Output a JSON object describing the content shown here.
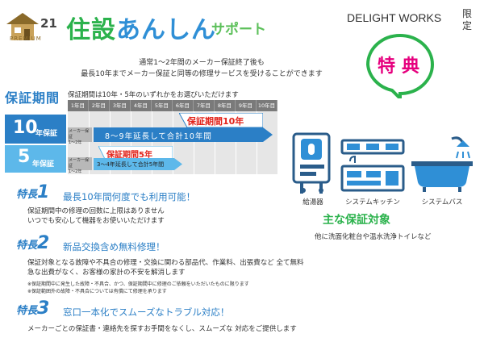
{
  "header": {
    "logo_number": "21",
    "logo_premium": "PREMIUM",
    "title_part1": "住設",
    "title_part2": "あんしん",
    "title_sub": "サポート"
  },
  "promo": {
    "company": "DELIGHT WORKS",
    "limited": "限定",
    "bonus": "特典"
  },
  "intro": {
    "line1": "通常1～2年間のメーカー保証終了後も",
    "line2": "最長10年までメーカー保証と同等の修理サービスを受けることができます"
  },
  "guarantee": {
    "section_label": "保証期間",
    "note": "保証期間は10年・5年のいずれかをお選びいただけます",
    "years": [
      "1年目",
      "2年目",
      "3年目",
      "4年目",
      "5年目",
      "6年目",
      "7年目",
      "8年目",
      "9年目",
      "10年目"
    ],
    "plan10_label": "10",
    "plan10_suffix": "年保証",
    "plan5_label": "5",
    "plan5_suffix": "年保証",
    "manufacturer_text": "メーカー保証",
    "manufacturer_years": "1～2年",
    "plan10_banner": "保証期間10年",
    "plan10_extension": "8～9年延長して合計10年間",
    "plan5_banner": "保証期間5年",
    "plan5_extension": "3～4年延長して合計5年間"
  },
  "features": [
    {
      "label": "特長",
      "num": "1",
      "title": "最長10年間何度でも利用可能！",
      "body": [
        "保証期間中の修理の回数に上限はありません",
        "いつでも安心して機器をお使いいただけます"
      ],
      "notes": []
    },
    {
      "label": "特長",
      "num": "2",
      "title": "新品交換含め無料修理！",
      "body": [
        "保証対象となる故障や不具合の修理・交換に関わる部品代、作業料、出張費など 全て無料",
        "急な出費がなく、お客様の家計の不安を解消します"
      ],
      "notes": [
        "※保証期間中に発生した故障・不具合、かつ、保証期間中に修理のご依頼をいただいたものに限ります",
        "※保証範囲外の故障・不具合については有償にて修理を承ります"
      ]
    },
    {
      "label": "特長",
      "num": "3",
      "title": "窓口一本化でスムーズなトラブル対応！",
      "body": [
        "メーカーごとの保証書・連絡先を探すお手間をなくし、スムーズな 対応をご提供します"
      ],
      "notes": []
    }
  ],
  "targets": {
    "items": [
      {
        "label": "給湯器",
        "icon": "water-heater-icon"
      },
      {
        "label": "システムキッチン",
        "icon": "kitchen-icon"
      },
      {
        "label": "システムバス",
        "icon": "bathtub-icon"
      }
    ],
    "title": "主な保証対象",
    "note": "他に洗面化粧台や温水洗浄トイレなど"
  },
  "colors": {
    "brand_blue": "#2b7fc6",
    "light_blue": "#5db8ea",
    "green": "#2bb24c",
    "accent_red": "#e2231a",
    "pink": "#e6007e"
  }
}
